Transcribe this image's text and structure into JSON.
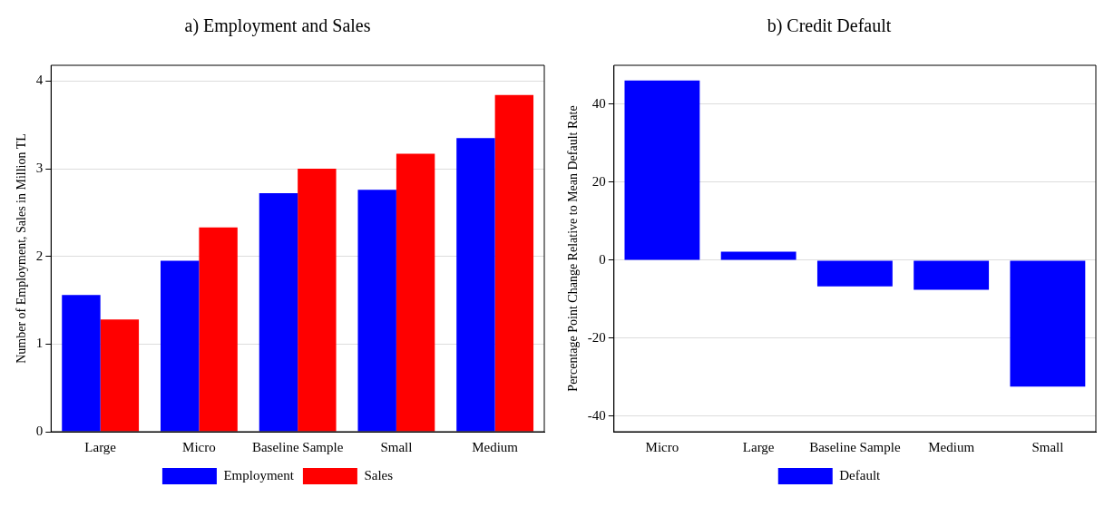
{
  "chart_data": [
    {
      "type": "bar",
      "title": "a) Employment and Sales",
      "ylabel": "Number of Employment, Sales in Million TL",
      "categories": [
        "Large",
        "Micro",
        "Baseline Sample",
        "Small",
        "Medium"
      ],
      "series": [
        {
          "name": "Employment",
          "color": "#0000ff",
          "values": [
            1.56,
            1.95,
            2.72,
            2.76,
            3.35
          ]
        },
        {
          "name": "Sales",
          "color": "#ff0000",
          "values": [
            1.28,
            2.33,
            3.0,
            3.17,
            3.84
          ]
        }
      ],
      "ylim": [
        0,
        4.18
      ],
      "yticks": [
        0,
        1,
        2,
        3,
        4
      ],
      "grid": "y",
      "legend": "bottom"
    },
    {
      "type": "bar",
      "title": "b) Credit Default",
      "ylabel": "Percentage Point Change Relative to Mean Default Rate",
      "categories": [
        "Micro",
        "Large",
        "Baseline Sample",
        "Medium",
        "Small"
      ],
      "series": [
        {
          "name": "Default",
          "color": "#0000ff",
          "values": [
            46.1,
            2.2,
            -6.7,
            -7.6,
            -32.4
          ]
        }
      ],
      "ylim": [
        -44,
        50
      ],
      "yticks": [
        -40,
        -20,
        0,
        20,
        40
      ],
      "grid": "y",
      "legend": "bottom"
    }
  ]
}
